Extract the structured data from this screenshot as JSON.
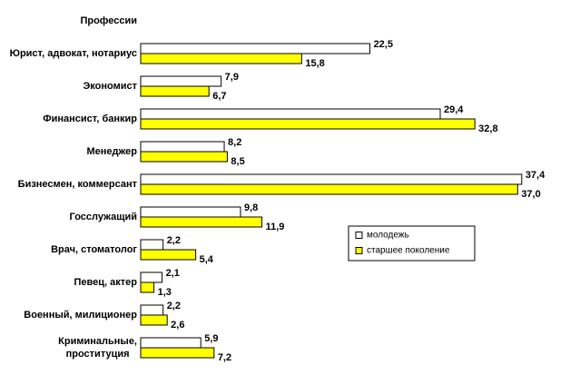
{
  "chart_data": {
    "type": "bar",
    "orientation": "horizontal",
    "y_label": "Профессии",
    "categories": [
      "Юрист, адвокат, нотариус",
      "Экономист",
      "Финансист, банкир",
      "Менеджер",
      "Бизнесмен, коммерсант",
      "Госслужащий",
      "Врач, стоматолог",
      "Певец, актер",
      "Военный, милиционер",
      "Криминальные,\nпроституция"
    ],
    "series": [
      {
        "name": "молодежь",
        "color": "#ffffff",
        "values": [
          22.5,
          7.9,
          29.4,
          8.2,
          37.4,
          9.8,
          2.2,
          2.1,
          2.2,
          5.9
        ],
        "value_labels": [
          "22,5",
          "7,9",
          "29,4",
          "8,2",
          "37,4",
          "9,8",
          "2,2",
          "2,1",
          "2,2",
          "5,9"
        ]
      },
      {
        "name": "старшее поколение",
        "color": "#ffff00",
        "values": [
          15.8,
          6.7,
          32.8,
          8.5,
          37.0,
          11.9,
          5.4,
          1.3,
          2.6,
          7.2
        ],
        "value_labels": [
          "15,8",
          "6,7",
          "32,8",
          "8,5",
          "37,0",
          "11,9",
          "5,4",
          "1,3",
          "2,6",
          "7,2"
        ]
      }
    ],
    "xlim": [
      0,
      40
    ],
    "legend": "right"
  }
}
